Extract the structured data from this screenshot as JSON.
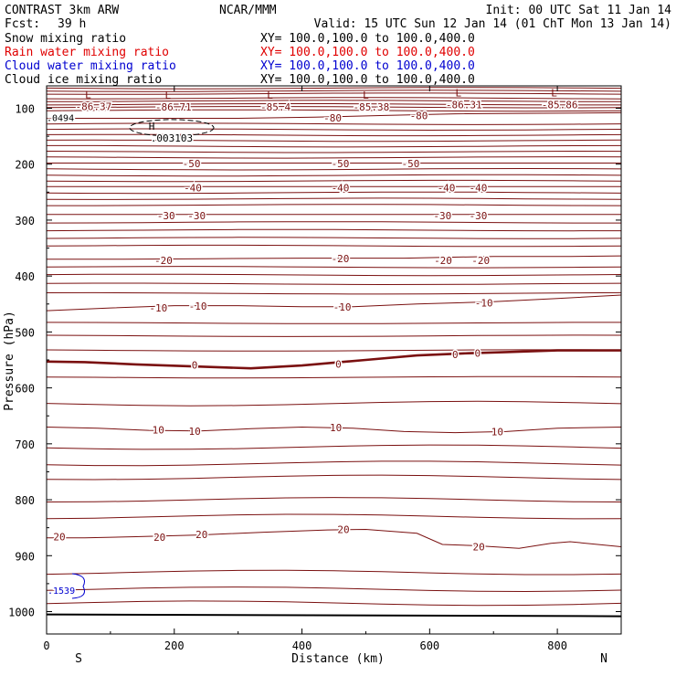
{
  "header": {
    "title_left": "CONTRAST  3km ARW",
    "title_center": "NCAR/MMM",
    "init": "Init: 00 UTC Sat 11 Jan 14",
    "fcst_label": "Fcst:",
    "fcst_value": "39 h",
    "valid": "Valid: 15 UTC Sun 12 Jan 14 (01 ChT Mon 13 Jan 14)"
  },
  "fields": [
    {
      "label": "Snow mixing ratio",
      "xy": "XY= 100.0,100.0 to 100.0,400.0",
      "color": "#000000"
    },
    {
      "label": "Rain water mixing ratio",
      "xy": "XY= 100.0,100.0 to 100.0,400.0",
      "color": "#e00000"
    },
    {
      "label": "Cloud water mixing ratio",
      "xy": "XY= 100.0,100.0 to 100.0,400.0",
      "color": "#0000d0"
    },
    {
      "label": "Cloud ice mixing ratio",
      "xy": "XY= 100.0,100.0 to 100.0,400.0",
      "color": "#000000"
    }
  ],
  "colors": {
    "isotherm": "#7a1010",
    "zero_line": "#7a1010",
    "cloud_water": "#0000d0",
    "ground": "#000000",
    "text": "#000000"
  },
  "chart_data": {
    "type": "contour",
    "xlabel": "Distance (km)",
    "ylabel": "Pressure (hPa)",
    "xlim": [
      0,
      900
    ],
    "ylim": [
      1040,
      60
    ],
    "x_ticks": [
      0,
      200,
      400,
      600,
      800
    ],
    "y_ticks": [
      100,
      200,
      300,
      400,
      500,
      600,
      700,
      800,
      900,
      1000
    ],
    "end_labels": {
      "left": "S",
      "right": "N"
    },
    "isotherms": [
      {
        "value": 10,
        "points": [
          [
            0,
            670
          ],
          [
            80,
            672
          ],
          [
            160,
            676
          ],
          [
            240,
            677
          ],
          [
            320,
            673
          ],
          [
            400,
            670
          ],
          [
            480,
            672
          ],
          [
            560,
            678
          ],
          [
            640,
            680
          ],
          [
            720,
            678
          ],
          [
            800,
            672
          ],
          [
            900,
            670
          ]
        ],
        "labels": [
          [
            175,
            675
          ],
          [
            232,
            677
          ],
          [
            453,
            671
          ],
          [
            706,
            678
          ]
        ]
      },
      {
        "value": 20,
        "points": [
          [
            0,
            868
          ],
          [
            60,
            868
          ],
          [
            140,
            866
          ],
          [
            240,
            863
          ],
          [
            340,
            858
          ],
          [
            440,
            854
          ],
          [
            500,
            853
          ],
          [
            580,
            860
          ],
          [
            620,
            880
          ],
          [
            670,
            882
          ],
          [
            740,
            887
          ],
          [
            790,
            878
          ],
          [
            820,
            875
          ],
          [
            900,
            884
          ]
        ],
        "labels": [
          [
            20,
            866
          ],
          [
            177,
            867
          ],
          [
            243,
            862
          ],
          [
            465,
            853
          ],
          [
            677,
            884
          ]
        ]
      },
      {
        "value": 0,
        "points": [
          [
            0,
            553
          ],
          [
            60,
            554
          ],
          [
            140,
            558
          ],
          [
            240,
            562
          ],
          [
            320,
            565
          ],
          [
            400,
            560
          ],
          [
            500,
            550
          ],
          [
            580,
            542
          ],
          [
            660,
            538
          ],
          [
            720,
            536
          ],
          [
            800,
            533
          ],
          [
            900,
            533
          ]
        ],
        "labels": [
          [
            232,
            559
          ],
          [
            457,
            557
          ],
          [
            640,
            540
          ],
          [
            675,
            538
          ]
        ]
      },
      {
        "value": -10,
        "points": [
          [
            0,
            462
          ],
          [
            100,
            457
          ],
          [
            200,
            453
          ],
          [
            300,
            453
          ],
          [
            400,
            455
          ],
          [
            480,
            455
          ],
          [
            580,
            450
          ],
          [
            700,
            446
          ],
          [
            800,
            440
          ],
          [
            900,
            434
          ]
        ],
        "labels": [
          [
            175,
            457
          ],
          [
            237,
            454
          ],
          [
            463,
            455
          ],
          [
            685,
            448
          ]
        ]
      },
      {
        "value": -20,
        "points": [
          [
            0,
            370
          ],
          [
            120,
            370
          ],
          [
            250,
            369
          ],
          [
            400,
            368
          ],
          [
            560,
            368
          ],
          [
            700,
            365
          ],
          [
            820,
            365
          ],
          [
            900,
            364
          ]
        ],
        "labels": [
          [
            183,
            372
          ],
          [
            460,
            369
          ],
          [
            621,
            372
          ],
          [
            680,
            372
          ]
        ]
      },
      {
        "value": -30,
        "points": [
          [
            0,
            290
          ],
          [
            900,
            290
          ]
        ],
        "labels": [
          [
            187,
            292
          ],
          [
            235,
            292
          ],
          [
            620,
            292
          ],
          [
            676,
            292
          ]
        ]
      },
      {
        "value": -40,
        "points": [
          [
            0,
            240
          ],
          [
            900,
            240
          ]
        ],
        "labels": [
          [
            229,
            242
          ],
          [
            460,
            242
          ],
          [
            626,
            242
          ],
          [
            676,
            242
          ]
        ]
      },
      {
        "value": -50,
        "points": [
          [
            0,
            198
          ],
          [
            900,
            198
          ]
        ],
        "labels": [
          [
            227,
            199
          ],
          [
            460,
            199
          ],
          [
            570,
            199
          ]
        ]
      },
      {
        "value": -80,
        "points": [
          [
            0,
            118
          ],
          [
            300,
            118
          ],
          [
            420,
            116
          ],
          [
            530,
            113
          ],
          [
            640,
            110
          ],
          [
            900,
            108
          ]
        ],
        "labels": [
          [
            448,
            117
          ],
          [
            583,
            113
          ]
        ]
      }
    ],
    "unlabeled_isotherms": [
      64,
      69,
      74,
      82,
      87,
      93,
      98,
      104,
      128,
      138,
      148,
      158,
      168,
      178,
      188,
      209,
      220,
      230,
      251,
      262,
      273,
      304,
      318,
      332,
      346,
      384,
      398,
      414,
      431,
      484,
      507,
      533,
      581,
      628,
      706,
      735,
      760,
      800,
      830,
      930,
      960,
      985
    ],
    "lows": [
      {
        "x": 65,
        "p": 82,
        "value": "-86.37"
      },
      {
        "x": 190,
        "p": 83,
        "value": "-86.71"
      },
      {
        "x": 350,
        "p": 83,
        "value": "-85.4"
      },
      {
        "x": 500,
        "p": 83,
        "value": "-85.38"
      },
      {
        "x": 645,
        "p": 79,
        "value": "-86.31"
      },
      {
        "x": 795,
        "p": 79,
        "value": "-85.86"
      }
    ],
    "cloud_ice_max": {
      "x": 196,
      "p": 135,
      "value": ".003103"
    },
    "edge_value": ".0494",
    "cloud_water_value": ".1539",
    "ground_pressure": 1005
  }
}
